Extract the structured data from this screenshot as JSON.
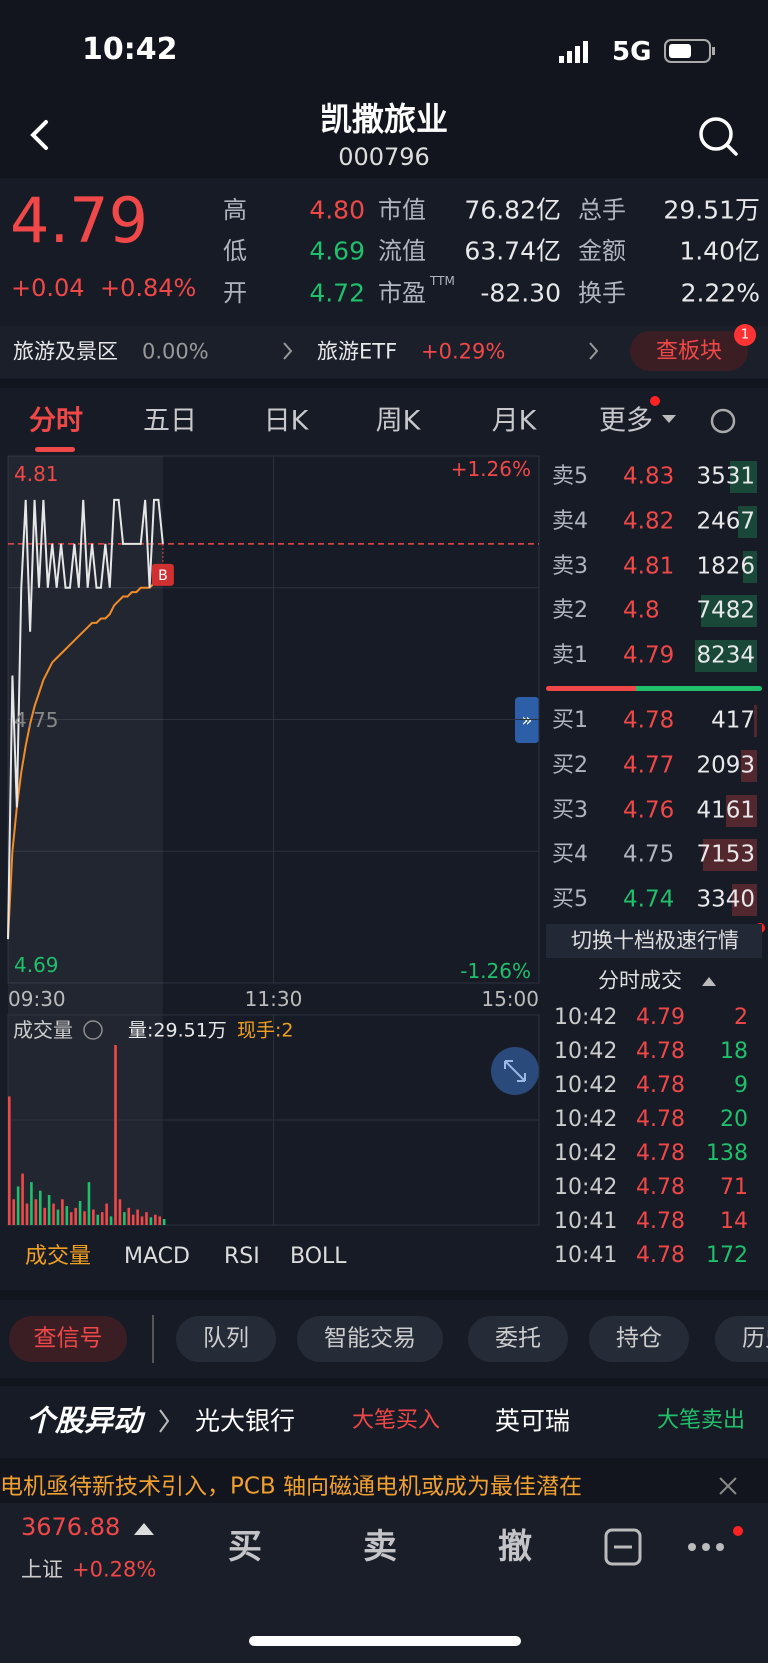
{
  "status_bar": {
    "time": "10:42",
    "network": "5G"
  },
  "header": {
    "title": "凯撒旅业",
    "code": "000796"
  },
  "quote": {
    "price": 4.79,
    "change": "+0.04",
    "change_pct": "+0.84%",
    "stats": [
      [
        {
          "label": "高",
          "value": "4.80",
          "color": "#f04848"
        },
        {
          "label": "市值",
          "value": "76.82亿"
        },
        {
          "label": "总手",
          "value": "29.51万"
        }
      ],
      [
        {
          "label": "低",
          "value": "4.69",
          "color": "#1fbf6c"
        },
        {
          "label": "流值",
          "value": "63.74亿"
        },
        {
          "label": "金额",
          "value": "1.40亿"
        }
      ],
      [
        {
          "label": "开",
          "value": "4.72",
          "color": "#1fbf6c"
        },
        {
          "label": "市盈",
          "sup": "TTM",
          "value": "-82.30"
        },
        {
          "label": "换手",
          "value": "2.22%"
        }
      ]
    ]
  },
  "sectors": [
    {
      "name": "旅游及景区",
      "change": "0.00%"
    },
    {
      "name": "旅游ETF",
      "change": "+0.29%"
    }
  ],
  "sector_button": "查板块",
  "sector_badge": "1",
  "tabs": [
    "分时",
    "五日",
    "日K",
    "周K",
    "月K",
    "更多"
  ],
  "chart_data": {
    "type": "line",
    "xlim": [
      0,
      240
    ],
    "xticks": [
      {
        "value": 0,
        "label": "09:30"
      },
      {
        "value": 120,
        "label": "11:30"
      },
      {
        "value": 240,
        "label": "15:00"
      }
    ],
    "ylim": [
      4.69,
      4.81
    ],
    "yticks": [
      4.81,
      4.75,
      4.69
    ],
    "pct_labels": [
      "+1.26%",
      "-1.26%"
    ],
    "x": [
      0,
      2,
      4,
      6,
      8,
      10,
      12,
      14,
      16,
      18,
      20,
      22,
      24,
      26,
      28,
      30,
      32,
      34,
      36,
      38,
      40,
      42,
      44,
      46,
      48,
      50,
      52,
      54,
      56,
      58,
      60,
      62,
      64,
      66,
      68,
      70
    ],
    "series": [
      {
        "color": "#e6e6e6",
        "values": [
          4.7,
          4.76,
          4.73,
          4.78,
          4.8,
          4.77,
          4.8,
          4.78,
          4.8,
          4.78,
          4.79,
          4.78,
          4.79,
          4.78,
          4.78,
          4.79,
          4.78,
          4.8,
          4.78,
          4.79,
          4.78,
          4.78,
          4.79,
          4.78,
          4.8,
          4.8,
          4.79,
          4.79,
          4.79,
          4.79,
          4.79,
          4.8,
          4.78,
          4.8,
          4.8,
          4.79
        ]
      },
      {
        "color": "#f28c28",
        "values": [
          4.7,
          4.72,
          4.73,
          4.738,
          4.744,
          4.749,
          4.753,
          4.756,
          4.759,
          4.761,
          4.763,
          4.764,
          4.765,
          4.766,
          4.767,
          4.768,
          4.769,
          4.77,
          4.771,
          4.772,
          4.772,
          4.773,
          4.773,
          4.774,
          4.776,
          4.777,
          4.778,
          4.778,
          4.779,
          4.779,
          4.78,
          4.78,
          4.78,
          4.781,
          4.781,
          4.782
        ]
      }
    ],
    "marker": "B",
    "volume_label": "成交量",
    "volume_total": "量:29.51万",
    "volume_current": "现手:2",
    "volume": [
      15000,
      3000,
      4500,
      6000,
      2500,
      5000,
      3000,
      4000,
      2000,
      3500,
      2500,
      1800,
      3000,
      2200,
      1500,
      2000,
      2800,
      1600,
      5000,
      1800,
      1200,
      1500,
      2500,
      1000,
      21000,
      3000,
      1500,
      2000,
      1200,
      1800,
      1000,
      1500,
      900,
      1200,
      1000,
      700
    ],
    "up_color": "#f04848",
    "down_color": "#1fbf6c",
    "indicator_tabs": [
      "成交量",
      "MACD",
      "RSI",
      "BOLL"
    ]
  },
  "order_book": {
    "asks": [
      {
        "label": "卖5",
        "price": 4.83,
        "volume": 3531,
        "color": "#f04848"
      },
      {
        "label": "卖4",
        "price": 4.82,
        "volume": 2467,
        "color": "#f04848"
      },
      {
        "label": "卖3",
        "price": 4.81,
        "volume": 1826,
        "color": "#f04848"
      },
      {
        "label": "卖2",
        "price": 4.8,
        "volume": 7482,
        "color": "#f04848"
      },
      {
        "label": "卖1",
        "price": 4.79,
        "volume": 8234,
        "color": "#f04848"
      }
    ],
    "bids": [
      {
        "label": "买1",
        "price": 4.78,
        "volume": 417,
        "color": "#f04848"
      },
      {
        "label": "买2",
        "price": 4.77,
        "volume": 2093,
        "color": "#f04848"
      },
      {
        "label": "买3",
        "price": 4.76,
        "volume": 4161,
        "color": "#f04848"
      },
      {
        "label": "买4",
        "price": 4.75,
        "volume": 7153,
        "color": "#b0b4bc"
      },
      {
        "label": "买5",
        "price": 4.74,
        "volume": 3340,
        "color": "#1fbf6c"
      }
    ],
    "switch": "切换十档极速行情"
  },
  "trades": {
    "title": "分时成交",
    "rows": [
      {
        "time": "10:42",
        "price": 4.79,
        "volume": 2,
        "color": "#f04848"
      },
      {
        "time": "10:42",
        "price": 4.78,
        "volume": 18,
        "color": "#1fbf6c"
      },
      {
        "time": "10:42",
        "price": 4.78,
        "volume": 9,
        "color": "#1fbf6c"
      },
      {
        "time": "10:42",
        "price": 4.78,
        "volume": 20,
        "color": "#1fbf6c"
      },
      {
        "time": "10:42",
        "price": 4.78,
        "volume": 138,
        "color": "#1fbf6c"
      },
      {
        "time": "10:42",
        "price": 4.78,
        "volume": 71,
        "color": "#f04848"
      },
      {
        "time": "10:41",
        "price": 4.78,
        "volume": 14,
        "color": "#f04848"
      },
      {
        "time": "10:41",
        "price": 4.78,
        "volume": 172,
        "color": "#1fbf6c"
      }
    ]
  },
  "actions": [
    "查信号",
    "队列",
    "智能交易",
    "委托",
    "持仓",
    "历史"
  ],
  "news": {
    "title": "个股异动",
    "items": [
      {
        "name": "光大银行",
        "tag": "大笔买入",
        "color": "#f04848"
      },
      {
        "name": "英可瑞",
        "tag": "大笔卖出",
        "color": "#1fbf6c"
      }
    ],
    "ticker": "电机亟待新技术引入，PCB 轴向磁通电机或成为最佳潜在"
  },
  "bottom_bar": {
    "index_value": "3676.88",
    "index_name": "上证",
    "index_change": "+0.28%",
    "buttons": [
      "买",
      "卖",
      "撤"
    ]
  }
}
